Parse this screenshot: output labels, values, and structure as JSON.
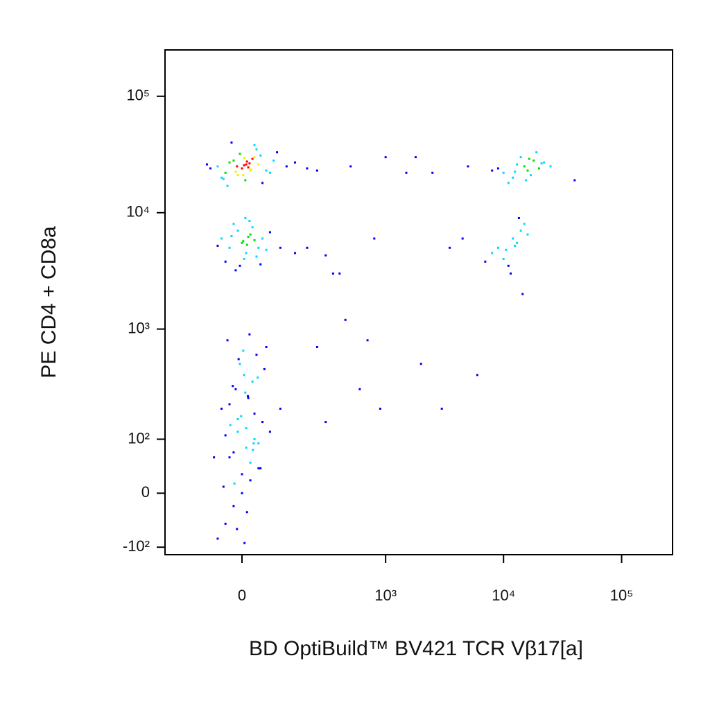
{
  "chart_data": {
    "type": "scatter",
    "xlabel": "BD OptiBuild™ BV421 TCR Vβ17[a]",
    "ylabel": "PE CD4 + CD8a",
    "xscale": "biexponential",
    "yscale": "biexponential",
    "xlim": [
      -260,
      270000
    ],
    "ylim": [
      -120,
      250000
    ],
    "xticks": [
      0,
      {
        "value": 1000,
        "label": "10³"
      },
      {
        "value": 10000,
        "label": "10⁴"
      },
      {
        "value": 100000,
        "label": "10⁵"
      }
    ],
    "yticks": [
      {
        "value": -100,
        "label": "-10²"
      },
      0,
      {
        "value": 100,
        "label": "10²"
      },
      {
        "value": 1000,
        "label": "10³"
      },
      {
        "value": 10000,
        "label": "10⁴"
      },
      {
        "value": 100000,
        "label": "10⁵"
      }
    ],
    "density_colors": [
      "#0000ff",
      "#00d8ff",
      "#00e000",
      "#f0f000",
      "#ff0000"
    ],
    "x": [
      -60,
      -40,
      -20,
      0,
      10,
      20,
      30,
      -30,
      -10,
      5,
      15,
      25,
      -50,
      40,
      60,
      -5,
      8,
      12,
      -15,
      35,
      50,
      80,
      120,
      -80,
      -25,
      3,
      18,
      -35,
      45,
      70,
      150,
      200,
      -90,
      22,
      -12,
      6,
      30,
      -45,
      90,
      250,
      -50,
      -30,
      -10,
      0,
      10,
      20,
      40,
      -20,
      5,
      15,
      30,
      60,
      -60,
      25,
      -5,
      8,
      50,
      100,
      150,
      -40,
      12,
      35,
      70,
      -15,
      3,
      200,
      300,
      18,
      -25,
      45,
      -60,
      -40,
      -20,
      0,
      20,
      40,
      -30,
      10,
      30,
      -10,
      50,
      -50,
      15,
      -15,
      25,
      5,
      -5,
      35,
      60,
      -35,
      0,
      20,
      -20,
      40,
      -40,
      10,
      -10,
      30,
      -30,
      8,
      70,
      -70,
      45,
      -45,
      12,
      -12,
      28,
      -28,
      55,
      100,
      3,
      18,
      -8,
      38,
      -22,
      14,
      -2,
      26,
      -18,
      6,
      10000,
      12000,
      15000,
      18000,
      20000,
      14000,
      16000,
      11000,
      13000,
      22000,
      17000,
      19000,
      9000,
      25000,
      15500,
      12500,
      21000,
      8000,
      16500,
      40000,
      9000,
      10000,
      12000,
      13000,
      11000,
      14000,
      15000,
      8000,
      10500,
      12500,
      16000,
      7000,
      11500,
      13500,
      14500,
      500,
      800,
      1000,
      1500,
      2000,
      3000,
      600,
      900,
      400,
      700,
      5000,
      6000,
      1800,
      3500,
      300,
      450,
      2500,
      350,
      250,
      4500
    ],
    "y": [
      25000,
      22000,
      28000,
      24000,
      26000,
      23000,
      30000,
      27000,
      21000,
      25500,
      24500,
      29000,
      20000,
      26000,
      23000,
      32000,
      19000,
      27500,
      22500,
      35000,
      18000,
      28000,
      25000,
      24000,
      40000,
      21000,
      26500,
      17000,
      31000,
      22000,
      27000,
      24000,
      26000,
      23500,
      25000,
      29500,
      38000,
      19500,
      33000,
      23000,
      6000,
      5000,
      7000,
      5500,
      4500,
      6500,
      5000,
      8000,
      4000,
      6200,
      5800,
      4800,
      5200,
      7500,
      3500,
      9000,
      6000,
      5000,
      4500,
      3800,
      5300,
      4200,
      6800,
      3200,
      5700,
      5000,
      4300,
      8500,
      6300,
      3600,
      -80,
      -50,
      -20,
      0,
      20,
      40,
      60,
      80,
      100,
      120,
      150,
      200,
      250,
      300,
      350,
      400,
      500,
      600,
      700,
      800,
      30,
      50,
      70,
      90,
      110,
      130,
      160,
      180,
      220,
      280,
      120,
      60,
      40,
      10,
      -30,
      -60,
      90,
      140,
      450,
      200,
      650,
      900,
      550,
      380,
      320,
      260,
      170,
      75,
      15,
      -90,
      22000,
      20000,
      25000,
      28000,
      24000,
      30000,
      23000,
      18000,
      26000,
      27000,
      21000,
      33000,
      24000,
      25000,
      19000,
      22500,
      26500,
      23000,
      29000,
      19000,
      5000,
      4000,
      6000,
      5500,
      3500,
      7000,
      8000,
      4500,
      4800,
      5200,
      6500,
      3800,
      3000,
      9000,
      2000,
      25000,
      6000,
      30000,
      22000,
      500,
      200,
      300,
      200,
      3000,
      800,
      25000,
      400,
      30000,
      5000,
      150,
      1200,
      22000,
      3000,
      700,
      6000
    ]
  }
}
